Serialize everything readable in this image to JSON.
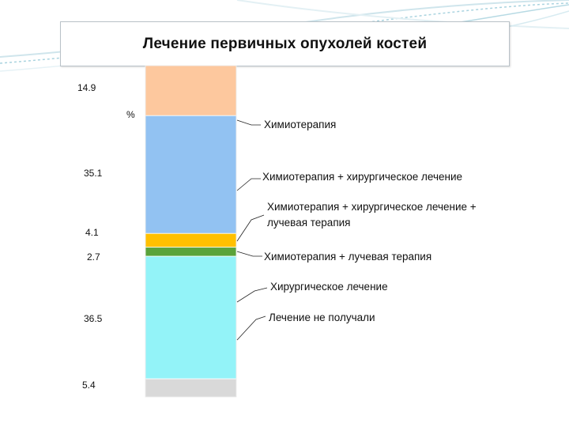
{
  "slide": {
    "title": "Лечение первичных опухолей костей",
    "colors": {
      "background": "#ffffff",
      "accent": "#8fc7d6",
      "title_border": "#b9c2c8"
    }
  },
  "chart_data": {
    "type": "bar",
    "stacked": true,
    "title": "Лечение первичных опухолей костей",
    "ylabel": "%",
    "xlabel": "",
    "ylim": [
      0,
      100
    ],
    "grid": false,
    "legend": "right",
    "segments": [
      {
        "name": "Химиотерапия",
        "value": 14.9,
        "label": "14.9",
        "color": "#fdc89e"
      },
      {
        "name": "Химиотерапия + хирургическое лечение",
        "value": 35.1,
        "label": "35.1",
        "color": "#92c2f2"
      },
      {
        "name": "Химиотерапия + хирургическое лечение + лучевая терапия",
        "value": 4.1,
        "label": "4.1",
        "color": "#ffc000"
      },
      {
        "name": "Химиотерапия + лучевая терапия",
        "value": 2.7,
        "label": "2.7",
        "color": "#5aa33a"
      },
      {
        "name": "Хирургическое лечение",
        "value": 36.5,
        "label": "36.5",
        "color": "#93f3f8"
      },
      {
        "name": "Лечение не получали",
        "value": 5.4,
        "label": "5.4",
        "color": "#d9d9d9"
      }
    ]
  }
}
